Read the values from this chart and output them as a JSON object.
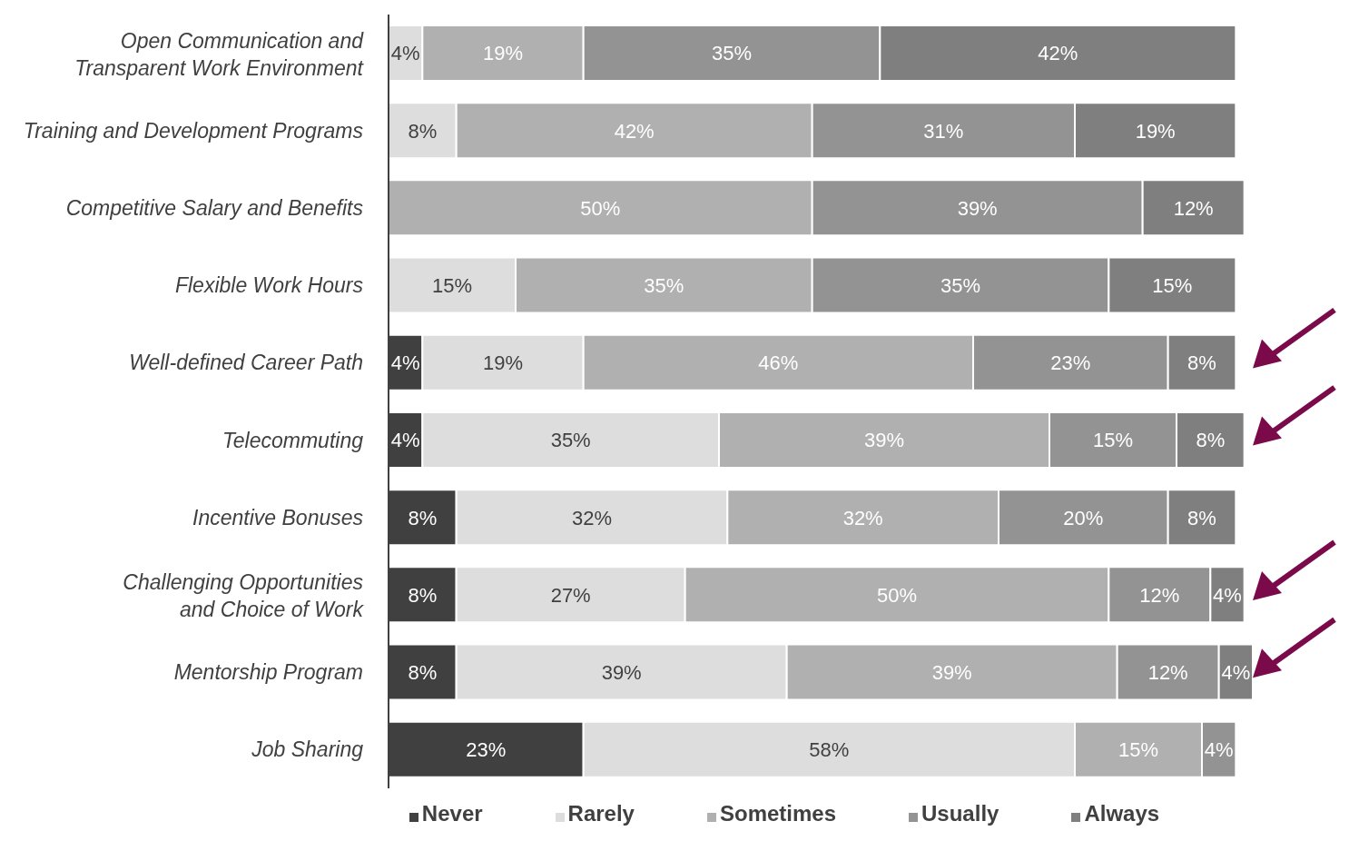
{
  "chart_data": {
    "type": "bar",
    "orientation": "horizontal",
    "stacked": true,
    "legend": "bottom",
    "grid": false,
    "categories": [
      "Open Communication and Transparent Work Environment",
      "Training and Development Programs",
      "Competitive Salary and Benefits",
      "Flexible Work Hours",
      "Well-defined Career Path",
      "Telecommuting",
      "Incentive Bonuses",
      "Challenging Opportunities and Choice of Work",
      "Mentorship Program",
      "Job Sharing"
    ],
    "series": [
      {
        "name": "Never",
        "color": "#404040",
        "values": [
          null,
          null,
          null,
          null,
          4,
          4,
          8,
          8,
          8,
          23
        ],
        "value_labels": [
          null,
          null,
          null,
          null,
          "4%",
          "4%",
          "8%",
          "8%",
          "8%",
          "23%"
        ]
      },
      {
        "name": "Rarely",
        "color": "#dddddd",
        "values": [
          4,
          8,
          null,
          15,
          19,
          35,
          32,
          27,
          39,
          58
        ],
        "value_labels": [
          "4%",
          "8%",
          null,
          "15%",
          "19%",
          "35%",
          "32%",
          "27%",
          "39%",
          "58%"
        ]
      },
      {
        "name": "Sometimes",
        "color": "#b0b0b0",
        "values": [
          19,
          42,
          50,
          35,
          46,
          39,
          32,
          50,
          39,
          15
        ],
        "value_labels": [
          "19%",
          "42%",
          "50%",
          "35%",
          "46%",
          "39%",
          "32%",
          "50%",
          "39%",
          "15%"
        ]
      },
      {
        "name": "Usually",
        "color": "#939393",
        "values": [
          35,
          31,
          39,
          35,
          23,
          15,
          20,
          12,
          12,
          4
        ],
        "value_labels": [
          "35%",
          "31%",
          "39%",
          "35%",
          "23%",
          "15%",
          "20%",
          "12%",
          "12%",
          "4%"
        ]
      },
      {
        "name": "Always",
        "color": "#7f7f7f",
        "values": [
          42,
          19,
          12,
          15,
          8,
          8,
          8,
          4,
          4,
          null
        ],
        "value_labels": [
          "42%",
          "19%",
          "12%",
          "15%",
          "8%",
          "8%",
          "8%",
          "4%",
          "4%",
          null
        ]
      }
    ]
  }
}
